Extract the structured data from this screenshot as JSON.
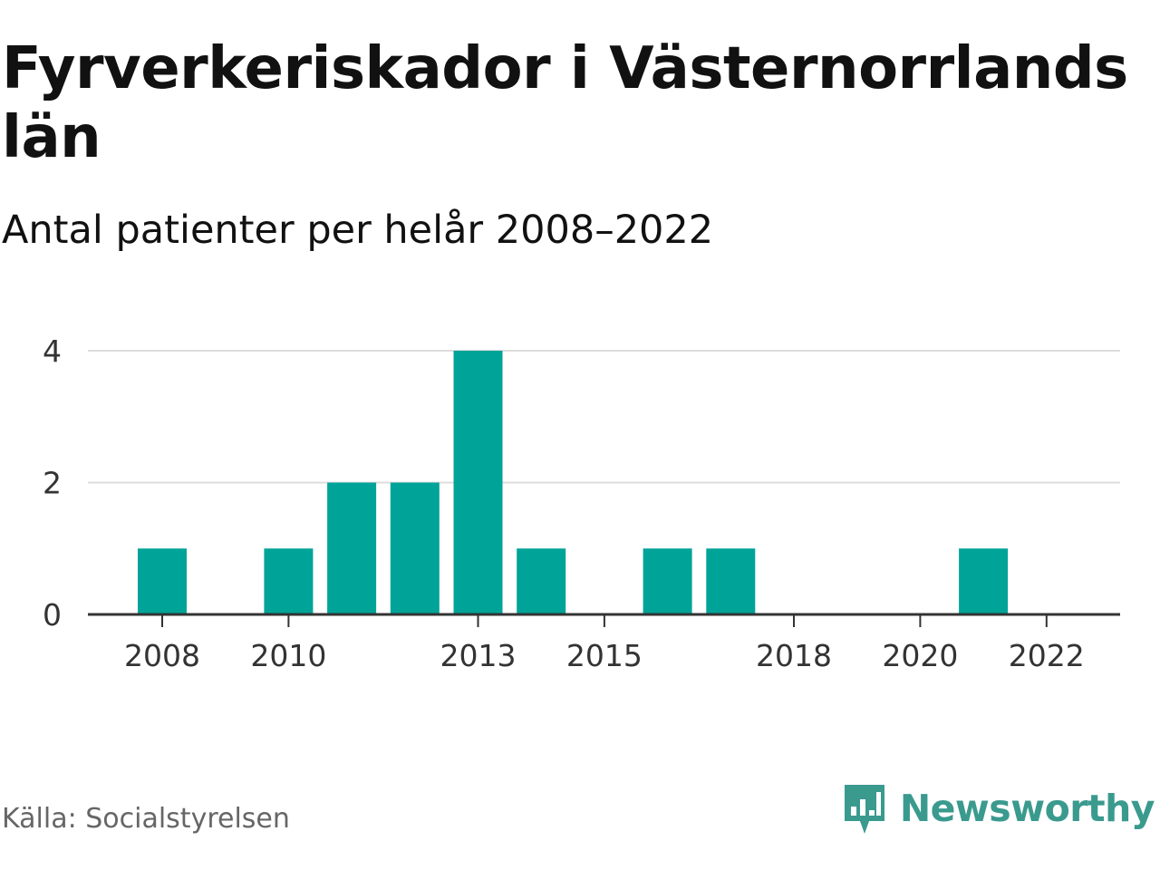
{
  "title": "Fyrverkeriskador i Västernorrlands län",
  "subtitle": "Antal patienter per helår 2008–2022",
  "source": "Källa: Socialstyrelsen",
  "brand": "Newsworthy",
  "colors": {
    "bar": "#00a398",
    "grid": "#dddddd",
    "axis": "#333333",
    "brand": "#3a9a8e"
  },
  "chart_data": {
    "type": "bar",
    "categories": [
      "2008",
      "2009",
      "2010",
      "2011",
      "2012",
      "2013",
      "2014",
      "2015",
      "2016",
      "2017",
      "2018",
      "2019",
      "2020",
      "2021",
      "2022"
    ],
    "values": [
      1,
      0,
      1,
      2,
      2,
      4,
      1,
      0,
      1,
      1,
      0,
      0,
      0,
      1,
      0
    ],
    "x_tick_labels": [
      "2008",
      "2010",
      "2013",
      "2015",
      "2018",
      "2020",
      "2022"
    ],
    "y_ticks": [
      0,
      2,
      4
    ],
    "ylim": [
      0,
      4
    ],
    "grid": true,
    "xlabel": "",
    "ylabel": ""
  }
}
